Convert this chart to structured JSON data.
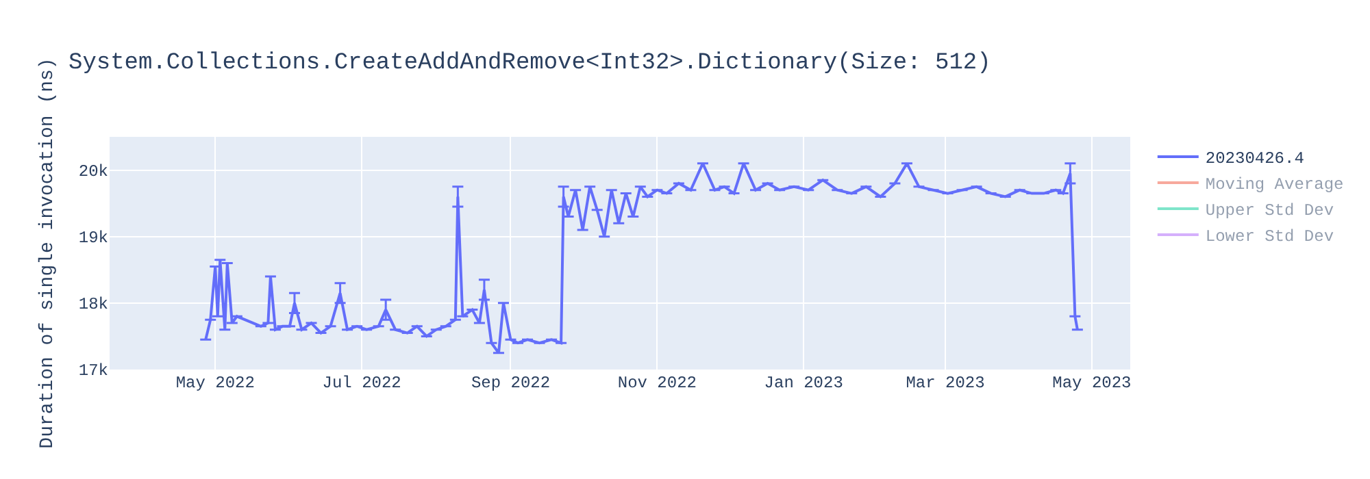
{
  "chart_data": {
    "type": "line",
    "title": "System.Collections.CreateAddAndRemove<Int32>.Dictionary(Size: 512)",
    "ylabel": "Duration of single invocation (ns)",
    "x": [
      "2022-04-27",
      "2022-04-29",
      "2022-05-01",
      "2022-05-02",
      "2022-05-03",
      "2022-05-05",
      "2022-05-06",
      "2022-05-08",
      "2022-05-10",
      "2022-05-20",
      "2022-05-23",
      "2022-05-24",
      "2022-05-26",
      "2022-05-29",
      "2022-06-01",
      "2022-06-03",
      "2022-06-06",
      "2022-06-10",
      "2022-06-14",
      "2022-06-18",
      "2022-06-22",
      "2022-06-25",
      "2022-06-29",
      "2022-07-03",
      "2022-07-08",
      "2022-07-11",
      "2022-07-15",
      "2022-07-20",
      "2022-07-24",
      "2022-07-28",
      "2022-08-01",
      "2022-08-05",
      "2022-08-09",
      "2022-08-10",
      "2022-08-12",
      "2022-08-16",
      "2022-08-19",
      "2022-08-21",
      "2022-08-24",
      "2022-08-27",
      "2022-08-29",
      "2022-09-01",
      "2022-09-04",
      "2022-09-08",
      "2022-09-13",
      "2022-09-18",
      "2022-09-22",
      "2022-09-23",
      "2022-09-25",
      "2022-09-28",
      "2022-10-01",
      "2022-10-04",
      "2022-10-07",
      "2022-10-10",
      "2022-10-13",
      "2022-10-16",
      "2022-10-19",
      "2022-10-22",
      "2022-10-25",
      "2022-10-28",
      "2022-11-01",
      "2022-11-05",
      "2022-11-10",
      "2022-11-15",
      "2022-11-20",
      "2022-11-25",
      "2022-11-29",
      "2022-12-03",
      "2022-12-07",
      "2022-12-12",
      "2022-12-17",
      "2022-12-22",
      "2022-12-28",
      "2023-01-03",
      "2023-01-09",
      "2023-01-15",
      "2023-01-21",
      "2023-01-27",
      "2023-02-02",
      "2023-02-08",
      "2023-02-13",
      "2023-02-18",
      "2023-02-24",
      "2023-03-02",
      "2023-03-08",
      "2023-03-14",
      "2023-03-20",
      "2023-03-26",
      "2023-04-01",
      "2023-04-06",
      "2023-04-11",
      "2023-04-16",
      "2023-04-19",
      "2023-04-22",
      "2023-04-24",
      "2023-04-25"
    ],
    "series": [
      {
        "name": "20230426.4",
        "color": "#636efa",
        "values": [
          17450,
          17750,
          18550,
          17800,
          18650,
          17600,
          18600,
          17700,
          17800,
          17650,
          17700,
          18400,
          17600,
          17650,
          17650,
          18000,
          17600,
          17700,
          17550,
          17650,
          18150,
          17600,
          17650,
          17600,
          17650,
          17900,
          17600,
          17550,
          17650,
          17500,
          17600,
          17650,
          17750,
          19600,
          17800,
          17900,
          17700,
          18200,
          17400,
          17250,
          18000,
          17450,
          17400,
          17450,
          17400,
          17450,
          17400,
          19600,
          19300,
          19700,
          19100,
          19750,
          19400,
          19000,
          19700,
          19200,
          19650,
          19300,
          19750,
          19600,
          19700,
          19650,
          19800,
          19700,
          20100,
          19700,
          19750,
          19650,
          20100,
          19700,
          19800,
          19700,
          19750,
          19700,
          19850,
          19700,
          19650,
          19750,
          19600,
          19800,
          20100,
          19750,
          19700,
          19650,
          19700,
          19750,
          19650,
          19600,
          19700,
          19650,
          19650,
          19700,
          19650,
          19950,
          17800,
          17600
        ],
        "errors": [
          null,
          null,
          null,
          null,
          null,
          null,
          null,
          null,
          null,
          null,
          null,
          null,
          null,
          null,
          null,
          150,
          null,
          null,
          null,
          null,
          150,
          null,
          null,
          null,
          null,
          150,
          null,
          null,
          null,
          null,
          null,
          null,
          null,
          150,
          null,
          null,
          null,
          150,
          null,
          null,
          null,
          null,
          null,
          null,
          null,
          null,
          null,
          150,
          null,
          null,
          null,
          null,
          null,
          null,
          null,
          null,
          null,
          null,
          null,
          null,
          null,
          null,
          null,
          null,
          null,
          null,
          null,
          null,
          null,
          null,
          null,
          null,
          null,
          null,
          null,
          null,
          null,
          null,
          null,
          null,
          null,
          null,
          null,
          null,
          null,
          null,
          null,
          null,
          null,
          null,
          null,
          null,
          null,
          150,
          null,
          null
        ]
      },
      {
        "name": "Moving Average",
        "color": "#ef553b",
        "values": [
          null,
          null,
          null,
          null,
          null,
          null,
          null,
          null,
          null,
          null,
          null,
          null,
          null,
          null,
          null,
          null,
          null,
          null,
          null,
          null,
          null,
          null,
          null,
          null,
          null,
          null,
          null,
          null,
          null,
          null,
          null,
          null,
          null,
          null,
          null,
          null,
          null,
          null,
          null,
          null,
          null,
          null,
          null,
          null,
          null,
          null,
          null,
          null,
          null,
          null,
          null,
          null,
          null,
          null,
          null,
          null,
          null,
          null,
          null,
          null,
          null,
          null,
          null,
          null,
          null,
          null,
          null,
          null,
          null,
          null,
          null,
          null,
          null,
          null,
          null,
          null,
          null,
          null,
          null,
          null,
          null,
          null,
          null,
          null,
          null,
          null,
          null,
          null,
          null,
          null,
          null,
          null,
          null,
          null,
          null,
          null
        ]
      },
      {
        "name": "Upper Std Dev",
        "color": "#00cc96",
        "values": [
          null,
          null,
          null,
          null,
          null,
          null,
          null,
          null,
          null,
          null,
          null,
          null,
          null,
          null,
          null,
          null,
          null,
          null,
          null,
          null,
          null,
          null,
          null,
          null,
          null,
          null,
          null,
          null,
          null,
          null,
          null,
          null,
          null,
          null,
          null,
          null,
          null,
          null,
          null,
          null,
          null,
          null,
          null,
          null,
          null,
          null,
          null,
          null,
          null,
          null,
          null,
          null,
          null,
          null,
          null,
          null,
          null,
          null,
          null,
          null,
          null,
          null,
          null,
          null,
          null,
          null,
          null,
          null,
          null,
          null,
          null,
          null,
          null,
          null,
          null,
          null,
          null,
          null,
          null,
          null,
          null,
          null,
          null,
          null,
          null,
          null,
          null,
          null,
          null,
          null,
          null,
          null,
          null,
          null,
          null,
          null
        ]
      },
      {
        "name": "Lower Std Dev",
        "color": "#ab63fa",
        "values": [
          null,
          null,
          null,
          null,
          null,
          null,
          null,
          null,
          null,
          null,
          null,
          null,
          null,
          null,
          null,
          null,
          null,
          null,
          null,
          null,
          null,
          null,
          null,
          null,
          null,
          null,
          null,
          null,
          null,
          null,
          null,
          null,
          null,
          null,
          null,
          null,
          null,
          null,
          null,
          null,
          null,
          null,
          null,
          null,
          null,
          null,
          null,
          null,
          null,
          null,
          null,
          null,
          null,
          null,
          null,
          null,
          null,
          null,
          null,
          null,
          null,
          null,
          null,
          null,
          null,
          null,
          null,
          null,
          null,
          null,
          null,
          null,
          null,
          null,
          null,
          null,
          null,
          null,
          null,
          null,
          null,
          null,
          null,
          null,
          null,
          null,
          null,
          null,
          null,
          null,
          null,
          null,
          null,
          null,
          null,
          null
        ]
      }
    ],
    "xlim": [
      "2022-03-18",
      "2023-05-17"
    ],
    "xticks": [
      {
        "value": "2022-05-01",
        "label": "May 2022"
      },
      {
        "value": "2022-07-01",
        "label": "Jul 2022"
      },
      {
        "value": "2022-09-01",
        "label": "Sep 2022"
      },
      {
        "value": "2022-11-01",
        "label": "Nov 2022"
      },
      {
        "value": "2023-01-01",
        "label": "Jan 2023"
      },
      {
        "value": "2023-03-01",
        "label": "Mar 2023"
      },
      {
        "value": "2023-05-01",
        "label": "May 2023"
      }
    ],
    "ylim": [
      17000,
      20500
    ],
    "yticks": [
      {
        "value": 17000,
        "label": "17k"
      },
      {
        "value": 18000,
        "label": "18k"
      },
      {
        "value": 19000,
        "label": "19k"
      },
      {
        "value": 20000,
        "label": "20k"
      }
    ],
    "grid": true,
    "legend": "top right",
    "line_style": "solid"
  }
}
